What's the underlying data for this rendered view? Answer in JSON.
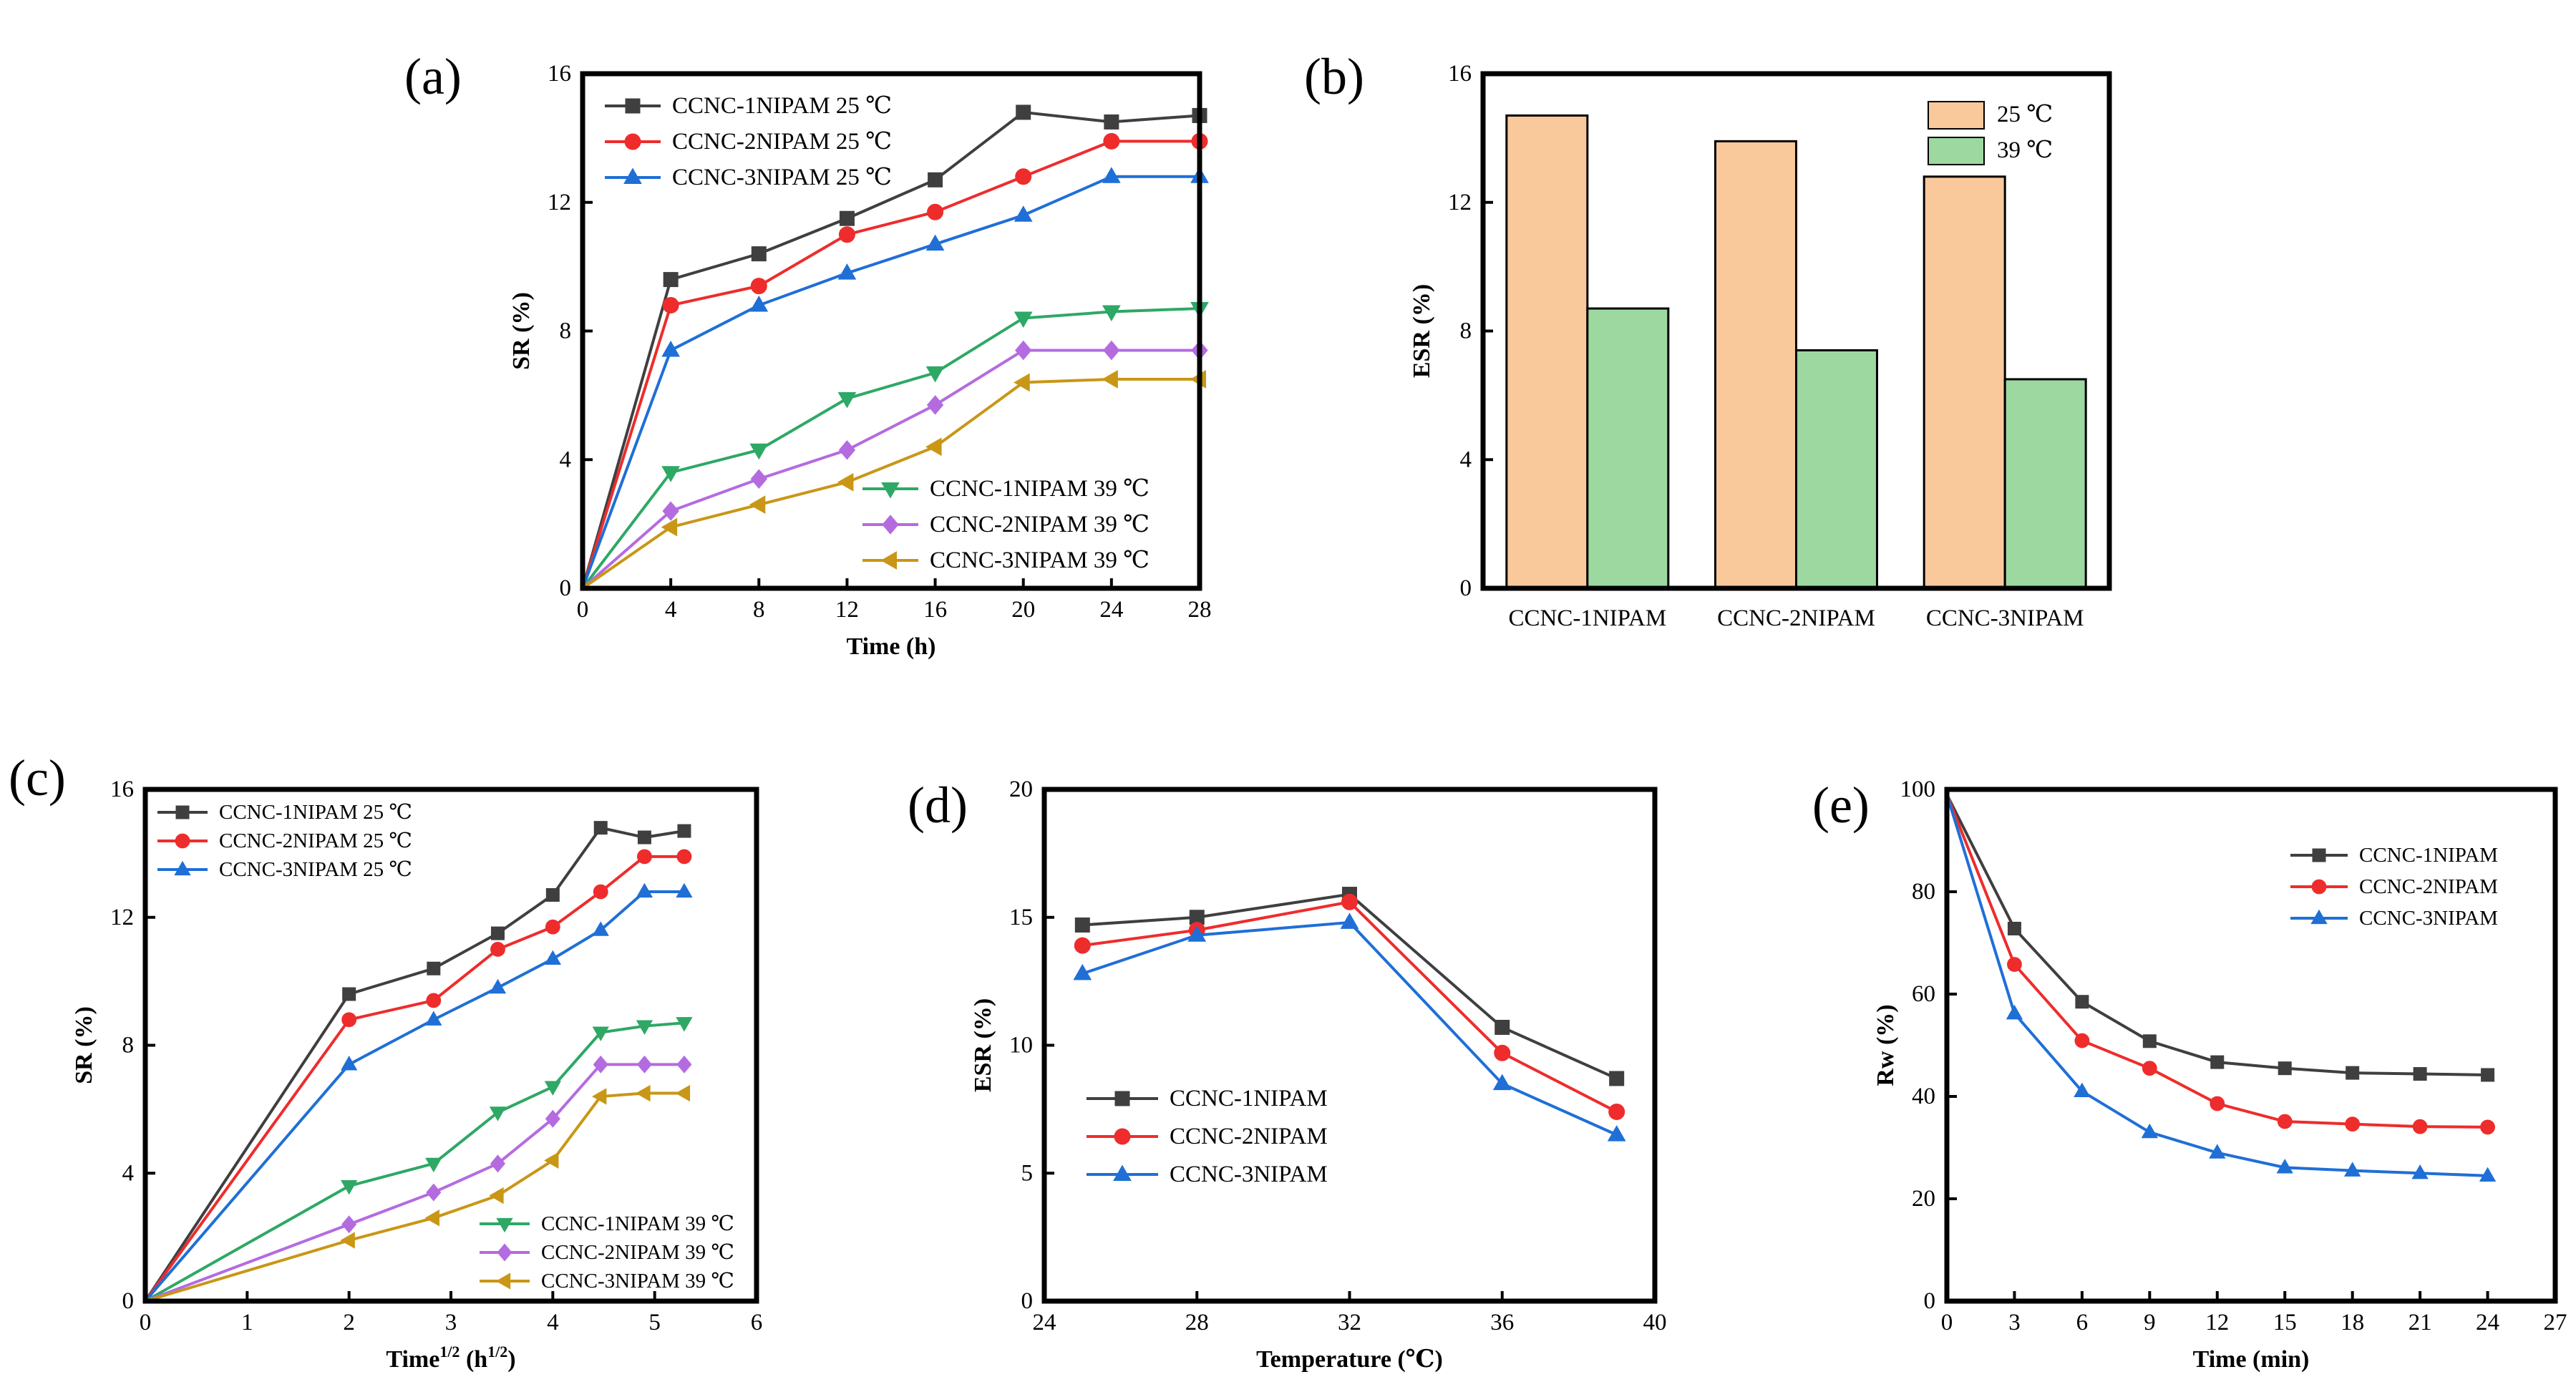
{
  "colors": {
    "s1": "#3f3f3f",
    "s2": "#ee2c2c",
    "s3": "#1f6fd6",
    "s4": "#2ea865",
    "s5": "#b46be0",
    "s6": "#c99616",
    "bar25": "#f9c89b",
    "bar39": "#9dd8a0"
  },
  "chart_data": [
    {
      "id": "a",
      "panel_label": "(a)",
      "type": "line",
      "xlabel": "Time (h)",
      "ylabel": "SR (%)",
      "xlim": [
        0,
        28
      ],
      "ylim": [
        0,
        16
      ],
      "xticks": [
        "0",
        "4",
        "8",
        "12",
        "16",
        "20",
        "24",
        "28"
      ],
      "yticks": [
        "0",
        "4",
        "8",
        "12",
        "16"
      ],
      "x": [
        0,
        4,
        8,
        12,
        16,
        20,
        24,
        28
      ],
      "series": [
        {
          "name": "CCNC-1NIPAM  25 ℃",
          "color": "s1",
          "marker": "square",
          "values": [
            0,
            9.6,
            10.4,
            11.5,
            12.7,
            14.8,
            14.5,
            14.7
          ]
        },
        {
          "name": "CCNC-2NIPAM  25 ℃",
          "color": "s2",
          "marker": "circle",
          "values": [
            0,
            8.8,
            9.4,
            11.0,
            11.7,
            12.8,
            13.9,
            13.9
          ]
        },
        {
          "name": "CCNC-3NIPAM  25 ℃",
          "color": "s3",
          "marker": "triangle",
          "values": [
            0,
            7.4,
            8.8,
            9.8,
            10.7,
            11.6,
            12.8,
            12.8
          ]
        },
        {
          "name": "CCNC-1NIPAM  39 ℃",
          "color": "s4",
          "marker": "tri-down",
          "values": [
            0,
            3.6,
            4.3,
            5.9,
            6.7,
            8.4,
            8.6,
            8.7
          ]
        },
        {
          "name": "CCNC-2NIPAM  39 ℃",
          "color": "s5",
          "marker": "diamond",
          "values": [
            0,
            2.4,
            3.4,
            4.3,
            5.7,
            7.4,
            7.4,
            7.4
          ]
        },
        {
          "name": "CCNC-3NIPAM  39 ℃",
          "color": "s6",
          "marker": "tri-left",
          "values": [
            0,
            1.9,
            2.6,
            3.3,
            4.4,
            6.4,
            6.5,
            6.5
          ]
        }
      ]
    },
    {
      "id": "b",
      "panel_label": "(b)",
      "type": "bar",
      "xlabel": "",
      "ylabel": "ESR (%)",
      "ylim": [
        0,
        16
      ],
      "yticks": [
        "0",
        "4",
        "8",
        "12",
        "16"
      ],
      "categories": [
        "CCNC-1NIPAM",
        "CCNC-2NIPAM",
        "CCNC-3NIPAM"
      ],
      "series": [
        {
          "name": "25 ℃",
          "color": "bar25",
          "values": [
            14.7,
            13.9,
            12.8
          ]
        },
        {
          "name": "39 ℃",
          "color": "bar39",
          "values": [
            8.7,
            7.4,
            6.5
          ]
        }
      ]
    },
    {
      "id": "c",
      "panel_label": "(c)",
      "type": "line",
      "xlabel": "Time",
      "xlabel_sup": "1/2",
      "xlabel_paren": " (h",
      "xlabel_paren_sup": "1/2",
      "xlabel_close": ")",
      "ylabel": "SR (%)",
      "xlim": [
        0,
        6
      ],
      "ylim": [
        0,
        16
      ],
      "xticks": [
        "0",
        "1",
        "2",
        "3",
        "4",
        "5",
        "6"
      ],
      "yticks": [
        "0",
        "4",
        "8",
        "12",
        "16"
      ],
      "x": [
        0,
        2,
        2.83,
        3.46,
        4,
        4.47,
        4.9,
        5.29
      ],
      "series": [
        {
          "name": "CCNC-1NIPAM  25 ℃",
          "color": "s1",
          "marker": "square",
          "values": [
            0,
            9.6,
            10.4,
            11.5,
            12.7,
            14.8,
            14.5,
            14.7
          ]
        },
        {
          "name": "CCNC-2NIPAM  25 ℃",
          "color": "s2",
          "marker": "circle",
          "values": [
            0,
            8.8,
            9.4,
            11.0,
            11.7,
            12.8,
            13.9,
            13.9
          ]
        },
        {
          "name": "CCNC-3NIPAM  25 ℃",
          "color": "s3",
          "marker": "triangle",
          "values": [
            0,
            7.4,
            8.8,
            9.8,
            10.7,
            11.6,
            12.8,
            12.8
          ]
        },
        {
          "name": "CCNC-1NIPAM  39 ℃",
          "color": "s4",
          "marker": "tri-down",
          "values": [
            0,
            3.6,
            4.3,
            5.9,
            6.7,
            8.4,
            8.6,
            8.7
          ]
        },
        {
          "name": "CCNC-2NIPAM  39 ℃",
          "color": "s5",
          "marker": "diamond",
          "values": [
            0,
            2.4,
            3.4,
            4.3,
            5.7,
            7.4,
            7.4,
            7.4
          ]
        },
        {
          "name": "CCNC-3NIPAM  39 ℃",
          "color": "s6",
          "marker": "tri-left",
          "values": [
            0,
            1.9,
            2.6,
            3.3,
            4.4,
            6.4,
            6.5,
            6.5
          ]
        }
      ]
    },
    {
      "id": "d",
      "panel_label": "(d)",
      "type": "line",
      "xlabel": "Temperature (℃)",
      "ylabel": "ESR (%)",
      "xlim": [
        24,
        40
      ],
      "ylim": [
        0,
        20
      ],
      "xticks": [
        "24",
        "28",
        "32",
        "36",
        "40"
      ],
      "yticks": [
        "0",
        "5",
        "10",
        "15",
        "20"
      ],
      "x": [
        25,
        28,
        32,
        36,
        39
      ],
      "series": [
        {
          "name": "CCNC-1NIPAM",
          "color": "s1",
          "marker": "square",
          "values": [
            14.7,
            15.0,
            15.9,
            10.7,
            8.7
          ]
        },
        {
          "name": "CCNC-2NIPAM",
          "color": "s2",
          "marker": "circle",
          "values": [
            13.9,
            14.5,
            15.6,
            9.7,
            7.4
          ]
        },
        {
          "name": "CCNC-3NIPAM",
          "color": "s3",
          "marker": "triangle",
          "values": [
            12.8,
            14.3,
            14.8,
            8.5,
            6.5
          ]
        }
      ]
    },
    {
      "id": "e",
      "panel_label": "(e)",
      "type": "line",
      "xlabel": "Time (min)",
      "ylabel": "Rw (%)",
      "xlim": [
        0,
        27
      ],
      "ylim": [
        0,
        100
      ],
      "xticks": [
        "0",
        "3",
        "6",
        "9",
        "12",
        "15",
        "18",
        "21",
        "24",
        "27"
      ],
      "yticks": [
        "0",
        "20",
        "40",
        "60",
        "80",
        "100"
      ],
      "x": [
        0,
        3,
        6,
        9,
        12,
        15,
        18,
        21,
        24
      ],
      "series": [
        {
          "name": "CCNC-1NIPAM",
          "color": "s1",
          "marker": "square",
          "values": [
            99,
            72.8,
            58.5,
            50.8,
            46.7,
            45.5,
            44.6,
            44.4,
            44.2
          ]
        },
        {
          "name": "CCNC-2NIPAM",
          "color": "s2",
          "marker": "circle",
          "values": [
            99,
            65.8,
            50.9,
            45.5,
            38.6,
            35.1,
            34.6,
            34.1,
            34.0
          ]
        },
        {
          "name": "CCNC-3NIPAM",
          "color": "s3",
          "marker": "triangle",
          "values": [
            99,
            56.2,
            41.0,
            33.0,
            29.0,
            26.1,
            25.5,
            25.0,
            24.5
          ]
        }
      ]
    }
  ]
}
